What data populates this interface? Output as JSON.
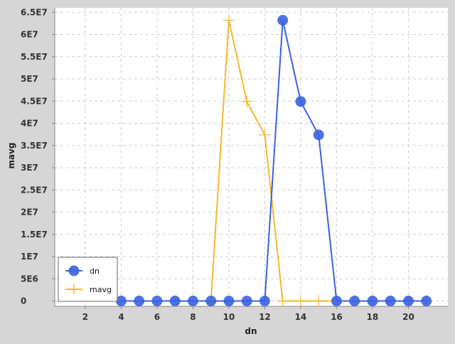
{
  "chart_data": {
    "type": "line",
    "xlabel": "dn",
    "ylabel": "mavg",
    "xlim": [
      0.3,
      22.2
    ],
    "ylim": [
      -1200000,
      66000000
    ],
    "x_ticks": [
      2,
      4,
      6,
      8,
      10,
      12,
      14,
      16,
      18,
      20
    ],
    "x_tick_labels": [
      "2",
      "4",
      "6",
      "8",
      "10",
      "12",
      "14",
      "16",
      "18",
      "20"
    ],
    "y_ticks": [
      0,
      5000000,
      10000000,
      15000000,
      20000000,
      25000000,
      30000000,
      35000000,
      40000000,
      45000000,
      50000000,
      55000000,
      60000000,
      65000000
    ],
    "y_tick_labels": [
      "0",
      "5E6",
      "1E7",
      "1.5E7",
      "2E7",
      "2.5E7",
      "3E7",
      "3.5E7",
      "4E7",
      "4.5E7",
      "5E7",
      "5.5E7",
      "6E7",
      "6.5E7"
    ],
    "grid": true,
    "legend_position": "bottom-left",
    "x": [
      4,
      5,
      6,
      7,
      8,
      9,
      10,
      11,
      12,
      13,
      14,
      15,
      16,
      17,
      18,
      19,
      20,
      21
    ],
    "series": [
      {
        "name": "dn",
        "color": "#3a62e0",
        "marker": "circle",
        "values": [
          0,
          0,
          0,
          0,
          0,
          0,
          0,
          0,
          0,
          63200000,
          44900000,
          37400000,
          0,
          0,
          0,
          0,
          0,
          0
        ]
      },
      {
        "name": "mavg",
        "color": "#f5b82e",
        "marker": "plus",
        "values": [
          0,
          0,
          0,
          0,
          0,
          0,
          63200000,
          44900000,
          37400000,
          0,
          0,
          0,
          0,
          0,
          0,
          0,
          0,
          0
        ]
      }
    ]
  }
}
